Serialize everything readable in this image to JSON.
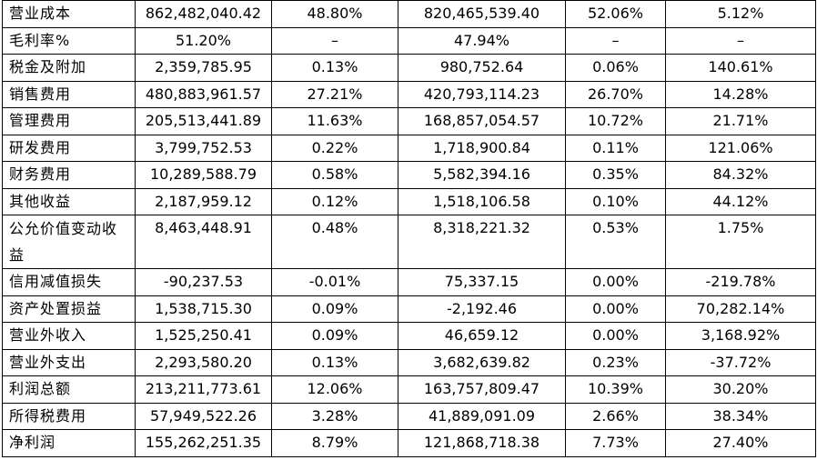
{
  "rows": [
    {
      "name": "营业成本",
      "cur": "862,482,040.42",
      "cur_pct": "48.80%",
      "prev": "820,465,539.40",
      "prev_pct": "52.06%",
      "change": "5.12%"
    },
    {
      "name": "毛利率%",
      "cur": "51.20%",
      "cur_pct": "–",
      "prev": "47.94%",
      "prev_pct": "–",
      "change": "–"
    },
    {
      "name": "税金及附加",
      "cur": "2,359,785.95",
      "cur_pct": "0.13%",
      "prev": "980,752.64",
      "prev_pct": "0.06%",
      "change": "140.61%"
    },
    {
      "name": "销售费用",
      "cur": "480,883,961.57",
      "cur_pct": "27.21%",
      "prev": "420,793,114.23",
      "prev_pct": "26.70%",
      "change": "14.28%"
    },
    {
      "name": "管理费用",
      "cur": "205,513,441.89",
      "cur_pct": "11.63%",
      "prev": "168,857,054.57",
      "prev_pct": "10.72%",
      "change": "21.71%"
    },
    {
      "name": "研发费用",
      "cur": "3,799,752.53",
      "cur_pct": "0.22%",
      "prev": "1,718,900.84",
      "prev_pct": "0.11%",
      "change": "121.06%"
    },
    {
      "name": "财务费用",
      "cur": "10,289,588.79",
      "cur_pct": "0.58%",
      "prev": "5,582,394.16",
      "prev_pct": "0.35%",
      "change": "84.32%"
    },
    {
      "name": "其他收益",
      "cur": "2,187,959.12",
      "cur_pct": "0.12%",
      "prev": "1,518,106.58",
      "prev_pct": "0.10%",
      "change": "44.12%"
    },
    {
      "name": "公允价值变动收益",
      "cur": "8,463,448.91",
      "cur_pct": "0.48%",
      "prev": "8,318,221.32",
      "prev_pct": "0.53%",
      "change": "1.75%"
    },
    {
      "name": "信用减值损失",
      "cur": "-90,237.53",
      "cur_pct": "-0.01%",
      "prev": "75,337.15",
      "prev_pct": "0.00%",
      "change": "-219.78%"
    },
    {
      "name": "资产处置损益",
      "cur": "1,538,715.30",
      "cur_pct": "0.09%",
      "prev": "-2,192.46",
      "prev_pct": "0.00%",
      "change": "70,282.14%"
    },
    {
      "name": "营业外收入",
      "cur": "1,525,250.41",
      "cur_pct": "0.09%",
      "prev": "46,659.12",
      "prev_pct": "0.00%",
      "change": "3,168.92%"
    },
    {
      "name": "营业外支出",
      "cur": "2,293,580.20",
      "cur_pct": "0.13%",
      "prev": "3,682,639.82",
      "prev_pct": "0.23%",
      "change": "-37.72%"
    },
    {
      "name": "利润总额",
      "cur": "213,211,773.61",
      "cur_pct": "12.06%",
      "prev": "163,757,809.47",
      "prev_pct": "10.39%",
      "change": "30.20%"
    },
    {
      "name": "所得税费用",
      "cur": "57,949,522.26",
      "cur_pct": "3.28%",
      "prev": "41,889,091.09",
      "prev_pct": "2.66%",
      "change": "38.34%"
    },
    {
      "name": "净利润",
      "cur": "155,262,251.35",
      "cur_pct": "8.79%",
      "prev": "121,868,718.38",
      "prev_pct": "7.73%",
      "change": "27.40%"
    }
  ]
}
